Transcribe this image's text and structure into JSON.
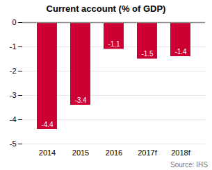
{
  "chart_data": {
    "type": "bar",
    "title": "Current account (% of GDP)",
    "categories": [
      "2014",
      "2015",
      "2016",
      "2017f",
      "2018f"
    ],
    "values": [
      -4.4,
      -3.4,
      -1.1,
      -1.5,
      -1.4
    ],
    "color": "#cc0033",
    "ylim": [
      -5,
      0
    ],
    "yticks": [
      0,
      -1,
      -2,
      -3,
      -4,
      -5
    ],
    "grid": true,
    "data_labels": true,
    "annotations": [
      "Source: IHS"
    ]
  }
}
